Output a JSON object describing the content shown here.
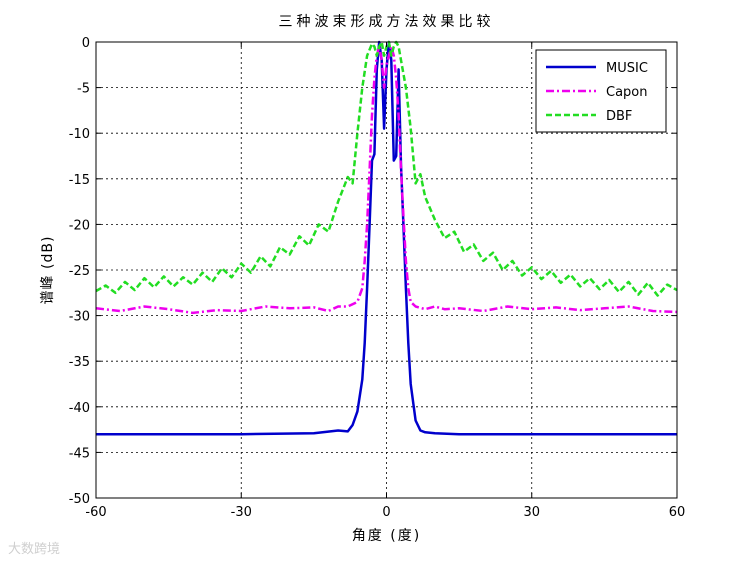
{
  "chart_data": {
    "type": "line",
    "title": "三种波束形成方法效果比较",
    "xlabel": "角度 (度)",
    "ylabel": "谱峰 (dB)",
    "xlim": [
      -60,
      60
    ],
    "ylim": [
      -50,
      0
    ],
    "xticks": [
      -60,
      -30,
      0,
      30,
      60
    ],
    "yticks": [
      0,
      -5,
      -10,
      -15,
      -20,
      -25,
      -30,
      -35,
      -40,
      -45,
      -50
    ],
    "grid": true,
    "legend_position": "top-right",
    "series": [
      {
        "name": "MUSIC",
        "color": "#0000cc",
        "style": "solid",
        "x": [
          -60,
          -30,
          -15,
          -10,
          -8,
          -7,
          -6,
          -5,
          -4.5,
          -4,
          -3.5,
          -3,
          -2.5,
          -2,
          -1.5,
          -1,
          -0.5,
          0,
          0.5,
          1,
          1.5,
          2,
          2.5,
          3,
          3.5,
          4,
          4.5,
          5,
          6,
          7,
          8,
          10,
          15,
          30,
          60
        ],
        "y": [
          -43,
          -43,
          -42.9,
          -42.6,
          -42.7,
          -42,
          -40.5,
          -37,
          -33,
          -27,
          -20,
          -13,
          -12.3,
          -3,
          0,
          -2,
          -9.5,
          -3,
          0,
          -2,
          -13,
          -12.5,
          -3,
          -13.5,
          -20,
          -27,
          -33,
          -37.5,
          -41.5,
          -42.6,
          -42.8,
          -42.9,
          -43,
          -43,
          -43
        ]
      },
      {
        "name": "Capon",
        "color": "#ee00ee",
        "style": "dashdot",
        "x": [
          -60,
          -55,
          -50,
          -45,
          -40,
          -35,
          -30,
          -25,
          -20,
          -15,
          -12,
          -10,
          -8,
          -6,
          -5,
          -4.5,
          -4,
          -3.5,
          -3,
          -2.5,
          -2,
          -1.5,
          -1,
          -0.5,
          0,
          0.5,
          1,
          1.5,
          2,
          2.5,
          3,
          3.5,
          4,
          4.5,
          5,
          6,
          8,
          10,
          12,
          15,
          20,
          25,
          30,
          35,
          40,
          45,
          50,
          55,
          60
        ],
        "y": [
          -29.2,
          -29.5,
          -29,
          -29.3,
          -29.7,
          -29.4,
          -29.5,
          -29,
          -29.2,
          -29.1,
          -29.5,
          -29,
          -29,
          -28.5,
          -27,
          -24,
          -20,
          -14,
          -8,
          -4,
          -1.5,
          -0.5,
          -2,
          -5,
          -2.5,
          -1.5,
          -0.5,
          -1.5,
          -4,
          -8,
          -14,
          -19,
          -24,
          -27,
          -28.5,
          -29,
          -29.3,
          -29,
          -29.3,
          -29.2,
          -29.5,
          -29,
          -29.3,
          -29.1,
          -29.4,
          -29.2,
          -29,
          -29.5,
          -29.6
        ]
      },
      {
        "name": "DBF",
        "color": "#22dd22",
        "style": "dashed",
        "x": [
          -60,
          -58,
          -56,
          -54,
          -52,
          -50,
          -48,
          -46,
          -44,
          -42,
          -40,
          -38,
          -36,
          -34,
          -32,
          -30,
          -28,
          -26,
          -24,
          -22,
          -20,
          -18,
          -16,
          -14,
          -12,
          -10,
          -8,
          -7,
          -6,
          -5,
          -4,
          -3,
          -2.5,
          -2,
          -1.5,
          -1,
          -0.5,
          0,
          0.5,
          1,
          1.5,
          2,
          2.5,
          3,
          4,
          5,
          6,
          7,
          8,
          10,
          12,
          14,
          16,
          18,
          20,
          22,
          24,
          26,
          28,
          30,
          32,
          34,
          36,
          38,
          40,
          42,
          44,
          46,
          48,
          50,
          52,
          54,
          56,
          58,
          60
        ],
        "y": [
          -27.3,
          -26.7,
          -27.5,
          -26.3,
          -27.2,
          -25.9,
          -26.9,
          -25.7,
          -26.8,
          -25.8,
          -26.6,
          -25.3,
          -26.3,
          -24.8,
          -25.8,
          -24.3,
          -25.3,
          -23.5,
          -24.6,
          -22.5,
          -23.3,
          -21.3,
          -22.3,
          -20,
          -20.8,
          -17.5,
          -14.8,
          -15.5,
          -10,
          -5,
          -1.5,
          -0.2,
          -0.5,
          -1.5,
          -0.5,
          0,
          -1.5,
          -0.5,
          0,
          -1.5,
          -0.5,
          0,
          -0.5,
          -2,
          -5,
          -9.5,
          -15.5,
          -14.5,
          -17,
          -19.5,
          -21.5,
          -20.8,
          -23,
          -22.2,
          -24,
          -23.1,
          -25,
          -24,
          -25.6,
          -24.7,
          -26,
          -25.1,
          -26.4,
          -25.5,
          -26.8,
          -25.9,
          -27.1,
          -26.1,
          -27.4,
          -26.3,
          -27.7,
          -26.4,
          -27.8,
          -26.6,
          -27.2
        ]
      }
    ]
  },
  "watermark": "大数跨境"
}
